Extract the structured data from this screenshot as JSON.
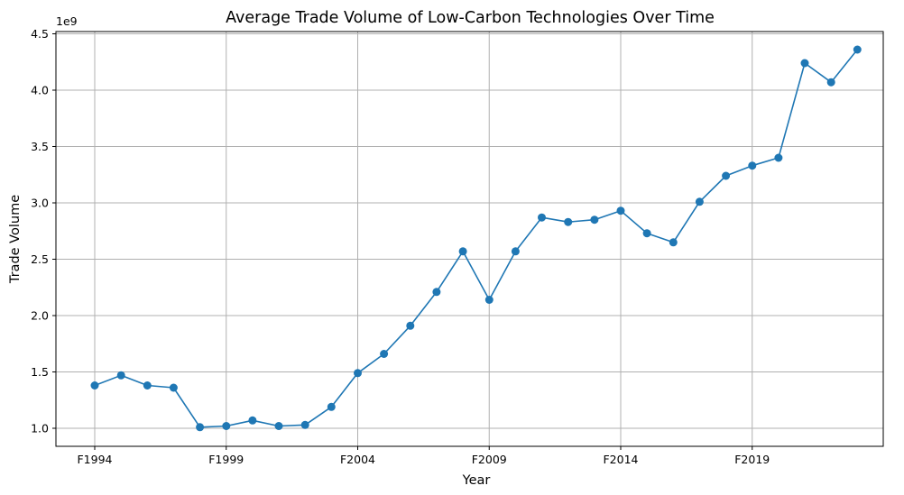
{
  "chart_data": {
    "type": "line",
    "title": "Average Trade Volume of Low-Carbon Technologies Over Time",
    "xlabel": "Year",
    "ylabel": "Trade Volume",
    "y_offset_label": "1e9",
    "x_tick_labels": [
      "F1994",
      "F1999",
      "F2004",
      "F2009",
      "F2014",
      "F2019"
    ],
    "y_tick_labels": [
      "1.0",
      "1.5",
      "2.0",
      "2.5",
      "3.0",
      "3.5",
      "4.0",
      "4.5"
    ],
    "ylim": [
      0.84,
      4.52
    ],
    "grid": true,
    "legend": "none",
    "line_color": "#1f77b4",
    "series": [
      {
        "x": [
          1994,
          1995,
          1996,
          1997,
          1998,
          1999,
          2000,
          2001,
          2002,
          2003,
          2004,
          2005,
          2006,
          2007,
          2008,
          2009,
          2010,
          2011,
          2012,
          2013,
          2014,
          2015,
          2016,
          2017,
          2018,
          2019,
          2020,
          2021,
          2022,
          2023
        ],
        "values": [
          1.38,
          1.47,
          1.38,
          1.36,
          1.01,
          1.02,
          1.07,
          1.02,
          1.03,
          1.19,
          1.49,
          1.66,
          1.91,
          2.21,
          2.57,
          2.14,
          2.57,
          2.87,
          2.83,
          2.85,
          2.93,
          2.73,
          2.65,
          3.01,
          3.24,
          3.33,
          3.4,
          4.24,
          4.07,
          4.36
        ]
      }
    ]
  }
}
